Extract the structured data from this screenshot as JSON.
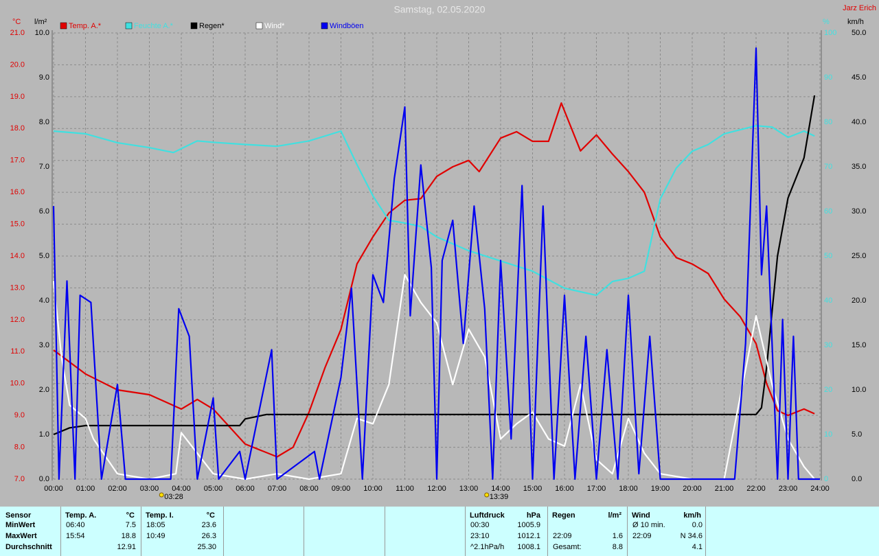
{
  "chart_data": {
    "type": "line",
    "title": "Samstag, 02.05.2020",
    "author": "Jarz Erich",
    "y_label": "°C",
    "y2_label": "l/m²",
    "y3_label": "%",
    "y4_label": "km/h",
    "xlim": [
      0,
      24
    ],
    "xticks": [
      {
        "value": 0,
        "label": "00:00"
      },
      {
        "value": 1,
        "label": "01:00"
      },
      {
        "value": 2,
        "label": "02:00"
      },
      {
        "value": 3,
        "label": "03:00"
      },
      {
        "value": 4,
        "label": "04:00"
      },
      {
        "value": 5,
        "label": "05:00"
      },
      {
        "value": 6,
        "label": "06:00"
      },
      {
        "value": 7,
        "label": "07:00"
      },
      {
        "value": 8,
        "label": "08:00"
      },
      {
        "value": 9,
        "label": "09:00"
      },
      {
        "value": 10,
        "label": "10:00"
      },
      {
        "value": 11,
        "label": "11:00"
      },
      {
        "value": 12,
        "label": "12:00"
      },
      {
        "value": 13,
        "label": "13:00"
      },
      {
        "value": 14,
        "label": "14:00"
      },
      {
        "value": 15,
        "label": "15:00"
      },
      {
        "value": 16,
        "label": "16:00"
      },
      {
        "value": 17,
        "label": "17:00"
      },
      {
        "value": 18,
        "label": "18:00"
      },
      {
        "value": 19,
        "label": "19:00"
      },
      {
        "value": 20,
        "label": "20:00"
      },
      {
        "value": 21,
        "label": "21:00"
      },
      {
        "value": 22,
        "label": "22:00"
      },
      {
        "value": 23,
        "label": "23:00"
      },
      {
        "value": 24,
        "label": "24:00"
      }
    ],
    "ylim": [
      7,
      21
    ],
    "yticks": [
      {
        "value": 7,
        "label": "7.0"
      },
      {
        "value": 8,
        "label": "8.0"
      },
      {
        "value": 9,
        "label": "9.0"
      },
      {
        "value": 10,
        "label": "10.0"
      },
      {
        "value": 11,
        "label": "11.0"
      },
      {
        "value": 12,
        "label": "12.0"
      },
      {
        "value": 13,
        "label": "13.0"
      },
      {
        "value": 14,
        "label": "14.0"
      },
      {
        "value": 15,
        "label": "15.0"
      },
      {
        "value": 16,
        "label": "16.0"
      },
      {
        "value": 17,
        "label": "17.0"
      },
      {
        "value": 18,
        "label": "18.0"
      },
      {
        "value": 19,
        "label": "19.0"
      },
      {
        "value": 20,
        "label": "20.0"
      },
      {
        "value": 21,
        "label": "21.0"
      }
    ],
    "y2lim": [
      0,
      10
    ],
    "y2ticks": [
      {
        "value": 0,
        "label": "0.0"
      },
      {
        "value": 1,
        "label": "1.0"
      },
      {
        "value": 2,
        "label": "2.0"
      },
      {
        "value": 3,
        "label": "3.0"
      },
      {
        "value": 4,
        "label": "4.0"
      },
      {
        "value": 5,
        "label": "5.0"
      },
      {
        "value": 6,
        "label": "6.0"
      },
      {
        "value": 7,
        "label": "7.0"
      },
      {
        "value": 8,
        "label": "8.0"
      },
      {
        "value": 9,
        "label": "9.0"
      },
      {
        "value": 10,
        "label": "10.0"
      }
    ],
    "y3lim": [
      0,
      100
    ],
    "y3ticks": [
      0,
      10,
      20,
      30,
      40,
      50,
      60,
      70,
      80,
      90,
      100
    ],
    "y4lim": [
      0,
      50
    ],
    "y4ticks": [
      {
        "value": 0,
        "label": "0.0"
      },
      {
        "value": 5,
        "label": "5.0"
      },
      {
        "value": 10,
        "label": "10.0"
      },
      {
        "value": 15,
        "label": "15.0"
      },
      {
        "value": 20,
        "label": "20.0"
      },
      {
        "value": 25,
        "label": "25.0"
      },
      {
        "value": 30,
        "label": "30.0"
      },
      {
        "value": 35,
        "label": "35.0"
      },
      {
        "value": 40,
        "label": "40.0"
      },
      {
        "value": 45,
        "label": "45.0"
      },
      {
        "value": 50,
        "label": "50.0"
      }
    ],
    "grid": true,
    "annotations": [
      {
        "x": 3.4667,
        "label": "03:28"
      },
      {
        "x": 13.65,
        "label": "13:39"
      }
    ],
    "series": [
      {
        "name": "Temp. A.*",
        "color": "#e00000",
        "axis": "y",
        "x": [
          0,
          1,
          2,
          3,
          4,
          4.5,
          5,
          6,
          7,
          7.5,
          8,
          8.5,
          9,
          9.5,
          10,
          10.5,
          11,
          11.5,
          12,
          12.5,
          13,
          13.33,
          14,
          14.5,
          15,
          15.5,
          15.9,
          16.5,
          17,
          17.5,
          18,
          18.5,
          19,
          19.5,
          20,
          20.5,
          21,
          21.5,
          22,
          22.33,
          22.67,
          23,
          23.5,
          23.83
        ],
        "values": [
          11.05,
          10.3,
          9.8,
          9.65,
          9.2,
          9.5,
          9.2,
          8.1,
          7.7,
          8.0,
          9.1,
          10.5,
          11.7,
          13.75,
          14.6,
          15.35,
          15.75,
          15.8,
          16.5,
          16.8,
          17.0,
          16.65,
          17.7,
          17.9,
          17.6,
          17.6,
          18.8,
          17.3,
          17.8,
          17.2,
          16.65,
          16.0,
          14.6,
          13.95,
          13.75,
          13.45,
          12.65,
          12.1,
          11.25,
          10.0,
          9.15,
          9.0,
          9.2,
          9.05
        ]
      },
      {
        "name": "Feuchte A.*",
        "color": "#40e0e0",
        "axis": "y3",
        "x": [
          0,
          1,
          2,
          3,
          3.75,
          4.5,
          5,
          6,
          7,
          8,
          9,
          9.5,
          10,
          10.5,
          11,
          11.5,
          12,
          13,
          14,
          15,
          16,
          16.5,
          17,
          17.5,
          18,
          18.5,
          19,
          19.5,
          20,
          20.5,
          21,
          22,
          22.5,
          23,
          23.5,
          23.83
        ],
        "values": [
          78,
          77.4,
          75.4,
          74.3,
          73.2,
          75.8,
          75.5,
          75,
          74.6,
          75.8,
          78,
          70.5,
          63.5,
          58,
          57.4,
          56.6,
          54.3,
          51.2,
          48.9,
          46.6,
          42.8,
          42,
          41.2,
          44.3,
          45,
          46.6,
          62.8,
          69.7,
          73.5,
          75,
          77.4,
          79.2,
          78.9,
          76.6,
          78,
          76.9
        ]
      },
      {
        "name": "Regen*",
        "color": "#000000",
        "axis": "y2",
        "x": [
          0,
          0.5,
          1,
          5.83,
          6,
          6.67,
          22,
          22.17,
          22.33,
          22.67,
          23,
          23.5,
          23.83
        ],
        "values": [
          1.0,
          1.15,
          1.2,
          1.2,
          1.35,
          1.45,
          1.45,
          1.6,
          2.5,
          5.0,
          6.3,
          7.2,
          8.6
        ]
      },
      {
        "name": "Wind*",
        "color": "#ffffff",
        "axis": "y4",
        "x": [
          0,
          0.25,
          0.5,
          1,
          1.25,
          2,
          3,
          3.83,
          4,
          4.5,
          5,
          6,
          7,
          8,
          9,
          9.5,
          10,
          10.5,
          11,
          11.5,
          12,
          12.5,
          13,
          13.5,
          14,
          14.5,
          15,
          15.5,
          16,
          16.5,
          17,
          17.5,
          18,
          18.5,
          19,
          20,
          21,
          22,
          22.5,
          23,
          23.5,
          23.83
        ],
        "values": [
          22.2,
          13.7,
          8.3,
          6.8,
          4.5,
          0.6,
          0,
          0.6,
          5.2,
          2.9,
          0.6,
          0,
          0.6,
          0,
          0.6,
          6.8,
          6.2,
          10.6,
          22.9,
          19.8,
          17.5,
          10.6,
          16.8,
          13.7,
          4.5,
          6.2,
          7.5,
          4.5,
          3.7,
          10.6,
          2.2,
          0.6,
          6.8,
          2.9,
          0.6,
          0,
          0,
          18.3,
          10.6,
          4.5,
          1.4,
          0
        ]
      },
      {
        "name": "Windböen",
        "color": "#0000f0",
        "axis": "y4",
        "x": [
          0,
          0.17,
          0.42,
          0.67,
          0.83,
          1.17,
          1.5,
          2,
          2.25,
          3.67,
          3.92,
          4.25,
          4.5,
          5,
          5.17,
          5.83,
          6,
          6.83,
          7,
          8.17,
          8.33,
          9,
          9.33,
          9.67,
          10,
          10.33,
          10.67,
          11,
          11.17,
          11.5,
          11.83,
          12,
          12.17,
          12.5,
          12.83,
          13.17,
          13.5,
          13.75,
          14,
          14.33,
          14.67,
          15,
          15.33,
          15.67,
          16,
          16.33,
          16.67,
          17,
          17.33,
          17.67,
          18,
          18.33,
          18.67,
          19,
          21.33,
          21.67,
          22,
          22.17,
          22.33,
          22.67,
          22.83,
          23,
          23.17,
          23.33,
          24
        ],
        "values": [
          30.6,
          0,
          22.2,
          0,
          20.6,
          19.8,
          0,
          10.6,
          0,
          0,
          19.1,
          16,
          0,
          9.1,
          0,
          3.1,
          0,
          14.5,
          0,
          3.1,
          0,
          11.4,
          21.4,
          0,
          22.9,
          19.8,
          33.7,
          41.7,
          18.3,
          35.2,
          23.7,
          0,
          24.5,
          29,
          15.2,
          30.6,
          19.1,
          0,
          24.5,
          4.5,
          32.9,
          0,
          30.6,
          0,
          20.6,
          0,
          16,
          0,
          14.5,
          0,
          20.6,
          0.6,
          16,
          0,
          0,
          15.2,
          48.3,
          22.9,
          30.6,
          0,
          17.9,
          0,
          16,
          0,
          0
        ]
      }
    ]
  },
  "stats": {
    "label_header": "Sensor",
    "row_labels": [
      "MinWert",
      "MaxWert",
      "Durchschnitt"
    ],
    "groups": [
      {
        "title": "Temp. A.",
        "unit": "°C",
        "rows": [
          {
            "time": "06:40",
            "value": "7.5"
          },
          {
            "time": "15:54",
            "value": "18.8"
          },
          {
            "value": "12.91"
          }
        ]
      },
      {
        "title": "Temp. I.",
        "unit": "°C",
        "rows": [
          {
            "time": "18:05",
            "value": "23.6"
          },
          {
            "time": "10:49",
            "value": "26.3"
          },
          {
            "value": "25.30"
          }
        ]
      },
      {
        "title": "Luftdruck",
        "unit": "hPa",
        "rows": [
          {
            "time": "00:30",
            "value": "1005.9"
          },
          {
            "time": "23:10",
            "value": "1012.1"
          },
          {
            "time": "^2.1hPa/h",
            "value": "1008.1"
          }
        ]
      },
      {
        "title": "Regen",
        "unit": "l/m²",
        "rows": [
          null,
          {
            "time": "22:09",
            "value": "1.6"
          },
          {
            "time": "Gesamt:",
            "value": "8.8"
          }
        ]
      },
      {
        "title": "Wind",
        "unit": "km/h",
        "rows": [
          {
            "time": "Ø 10 min.",
            "value": "0.0"
          },
          {
            "time": "22:09",
            "value": "N 34.6"
          },
          {
            "value": "4.1"
          }
        ]
      }
    ]
  }
}
